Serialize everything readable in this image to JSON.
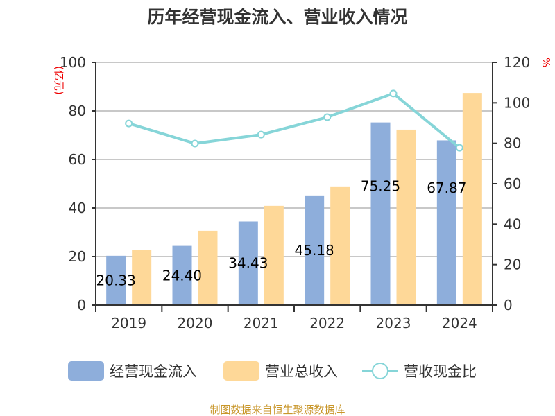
{
  "chart_data": {
    "type": "bar",
    "title": "历年经营现金流入、营业收入情况",
    "categories": [
      "2019",
      "2020",
      "2021",
      "2022",
      "2023",
      "2024"
    ],
    "left_axis": {
      "unit": "(亿元)",
      "ylim": [
        0,
        100
      ],
      "ticks": [
        0,
        20,
        40,
        60,
        80,
        100
      ]
    },
    "right_axis": {
      "unit": "%",
      "ylim": [
        0,
        120
      ],
      "ticks": [
        0,
        20,
        40,
        60,
        80,
        100,
        120
      ]
    },
    "series": [
      {
        "name": "经营现金流入",
        "type": "bar",
        "axis": "left",
        "color": "#8eaedb",
        "values": [
          20.33,
          24.4,
          34.43,
          45.18,
          75.25,
          67.87
        ],
        "labels": [
          "20.33",
          "24.40",
          "34.43",
          "45.18",
          "75.25",
          "67.87"
        ]
      },
      {
        "name": "营业总收入",
        "type": "bar",
        "axis": "left",
        "color": "#fed898",
        "values": [
          22.6,
          30.6,
          40.9,
          48.9,
          72.3,
          87.4
        ]
      },
      {
        "name": "营收现金比",
        "type": "line",
        "axis": "right",
        "color": "#86d5d8",
        "values": [
          89.8,
          79.9,
          84.3,
          92.9,
          104.6,
          77.8
        ]
      }
    ],
    "grid": true,
    "legend": "bottom",
    "source": "制图数据来自恒生聚源数据库"
  }
}
